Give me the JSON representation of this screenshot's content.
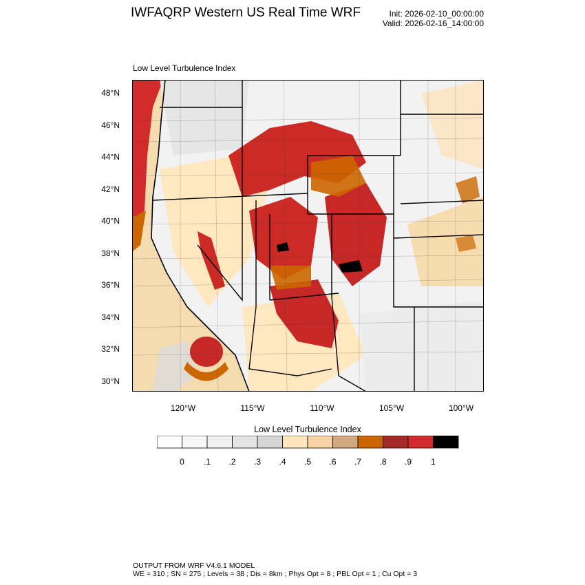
{
  "header": {
    "title": "IWFAQRP Western US Real Time WRF",
    "init": "Init: 2026-02-10_00:00:00",
    "valid": "Valid: 2026-02-16_14:00:00"
  },
  "map": {
    "subtitle": "Low Level Turbulence Index",
    "lat_labels": [
      "48°N",
      "46°N",
      "44°N",
      "42°N",
      "40°N",
      "38°N",
      "36°N",
      "34°N",
      "32°N",
      "30°N"
    ],
    "lon_labels": [
      "120°W",
      "115°W",
      "110°W",
      "105°W",
      "100°W"
    ],
    "colors": {
      "ocean_edge": "#d22b2b",
      "ocean": "#f4dbb0",
      "high": "#cc2a24",
      "mid": "#cc6600",
      "low": "#ffe8c0",
      "light": "#dcdcdc"
    }
  },
  "colorbar": {
    "title": "Low Level Turbulence Index",
    "labels": [
      "0",
      ".1",
      ".2",
      ".3",
      ".4",
      ".5",
      ".6",
      ".7",
      ".8",
      ".9",
      "1"
    ],
    "colors": [
      "#ffffff",
      "#f8f8f8",
      "#f0f0f0",
      "#e4e4e4",
      "#d6d6d6",
      "#ffe6bc",
      "#f7d3a4",
      "#d3a87e",
      "#cc6600",
      "#a52a2a",
      "#d22b2b",
      "#000000"
    ]
  },
  "footer": {
    "line1": "OUTPUT FROM WRF V4.6.1 MODEL",
    "line2": "WE = 310 ; SN = 275 ; Levels = 38 ; Dis = 8km ; Phys Opt = 8 ; PBL Opt = 1 ; Cu Opt = 3"
  }
}
